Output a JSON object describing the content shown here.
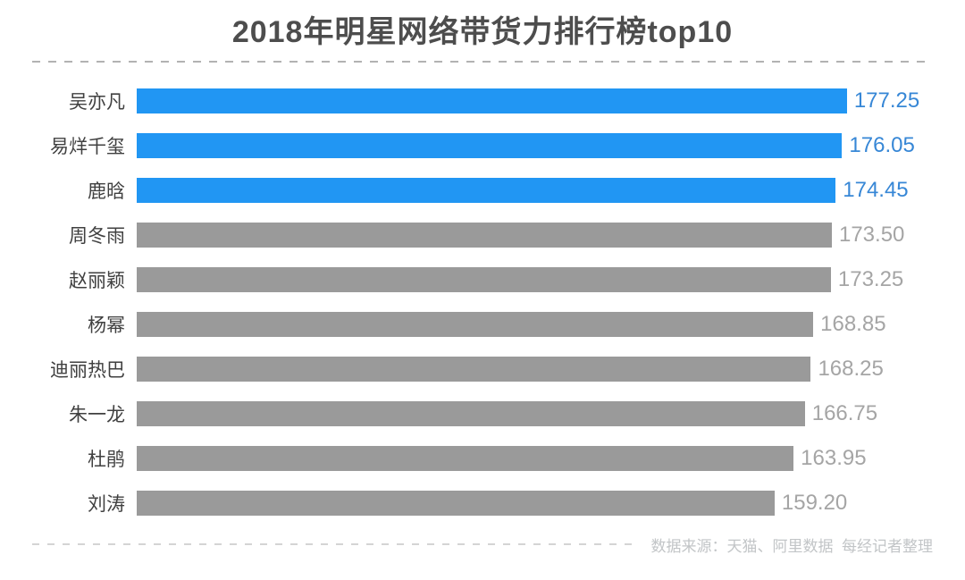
{
  "title": "2018年明星网络带货力排行榜top10",
  "footer": {
    "source_note": "数据来源：天猫、阿里数据  每经记者整理"
  },
  "colors": {
    "highlight_bar": "#2196f3",
    "normal_bar": "#9a9a9a",
    "highlight_value_text": "#3787d6",
    "normal_value_text": "#a5a5a5",
    "label_text": "#404040",
    "title_text": "#4d4d4d"
  },
  "chart_data": {
    "type": "bar",
    "orientation": "horizontal",
    "title": "2018年明星网络带货力排行榜top10",
    "categories": [
      "吴亦凡",
      "易烊千玺",
      "鹿晗",
      "周冬雨",
      "赵丽颖",
      "杨幂",
      "迪丽热巴",
      "朱一龙",
      "杜鹃",
      "刘涛"
    ],
    "values": [
      177.25,
      176.05,
      174.45,
      173.5,
      173.25,
      168.85,
      168.25,
      166.75,
      163.95,
      159.2
    ],
    "value_labels": [
      "177.25",
      "176.05",
      "174.45",
      "173.50",
      "173.25",
      "168.85",
      "168.25",
      "166.75",
      "163.95",
      "159.20"
    ],
    "highlighted_count": 3,
    "xlabel": "",
    "ylabel": "",
    "xlim": [
      0,
      198.7
    ],
    "grid": false,
    "legend": false,
    "value_labels_position": "end-of-bar",
    "source_note": "数据来源：天猫、阿里数据  每经记者整理"
  }
}
